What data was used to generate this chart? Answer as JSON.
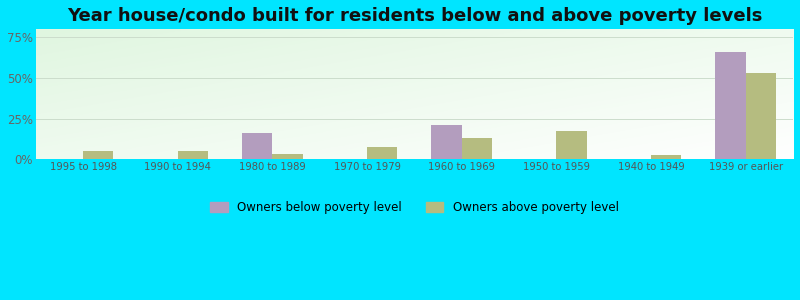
{
  "title": "Year house/condo built for residents below and above poverty levels",
  "categories": [
    "1995 to 1998",
    "1990 to 1994",
    "1980 to 1989",
    "1970 to 1979",
    "1960 to 1969",
    "1950 to 1959",
    "1940 to 1949",
    "1939 or earlier"
  ],
  "below_poverty": [
    0.0,
    0.0,
    16.0,
    0.0,
    21.0,
    0.0,
    0.0,
    66.0
  ],
  "above_poverty": [
    5.0,
    5.0,
    3.5,
    7.5,
    13.0,
    17.5,
    3.0,
    53.0
  ],
  "below_color": "#b39dbe",
  "above_color": "#b5bc80",
  "ylabel_ticks": [
    "0%",
    "25%",
    "50%",
    "75%"
  ],
  "ytick_vals": [
    0,
    25,
    50,
    75
  ],
  "ylim": [
    0,
    80
  ],
  "outer_bg": "#00e5ff",
  "title_fontsize": 13,
  "legend_labels": [
    "Owners below poverty level",
    "Owners above poverty level"
  ],
  "bar_width": 0.32
}
